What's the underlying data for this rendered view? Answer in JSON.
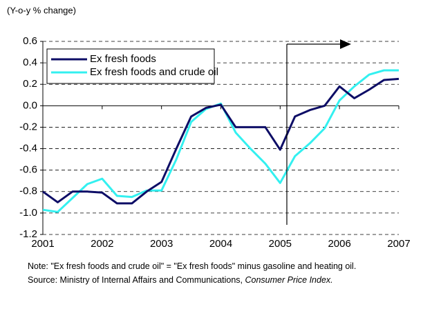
{
  "chart_data": {
    "type": "line",
    "y_axis_label": "(Y-o-y % change)",
    "x": [
      2001,
      2001.25,
      2001.5,
      2001.75,
      2002,
      2002.25,
      2002.5,
      2002.75,
      2003,
      2003.25,
      2003.5,
      2003.75,
      2004,
      2004.25,
      2004.5,
      2004.75,
      2005,
      2005.25,
      2005.5,
      2005.75,
      2006,
      2006.25,
      2006.5,
      2006.75,
      2007
    ],
    "series": [
      {
        "name": "Ex fresh foods",
        "color": "#0d0d66",
        "values": [
          -0.8,
          -0.9,
          -0.8,
          -0.8,
          -0.81,
          -0.91,
          -0.91,
          -0.8,
          -0.71,
          -0.4,
          -0.1,
          -0.02,
          0.01,
          -0.2,
          -0.2,
          -0.2,
          -0.41,
          -0.1,
          -0.04,
          0.0,
          0.18,
          0.07,
          0.15,
          0.24,
          0.25
        ]
      },
      {
        "name": "Ex fresh foods and crude oil",
        "color": "#33f0f0",
        "values": [
          -0.97,
          -0.99,
          -0.86,
          -0.73,
          -0.68,
          -0.84,
          -0.85,
          -0.79,
          -0.79,
          -0.5,
          -0.15,
          -0.03,
          0.02,
          -0.25,
          -0.4,
          -0.54,
          -0.72,
          -0.47,
          -0.35,
          -0.21,
          0.05,
          0.18,
          0.29,
          0.33,
          0.33
        ]
      }
    ],
    "xlim": [
      2001,
      2007
    ],
    "xticks": [
      2001,
      2002,
      2003,
      2004,
      2005,
      2006,
      2007
    ],
    "ylim": [
      -1.2,
      0.6
    ],
    "yticks": [
      0.6,
      0.4,
      0.2,
      {
        "value": 0,
        "label": "0.0"
      },
      -0.2,
      -0.4,
      -0.6,
      -0.8,
      {
        "value": -1,
        "label": "-1.0"
      },
      -1.2
    ],
    "grid": true,
    "legend": "upper left"
  },
  "notes": {
    "note": "Note: \"Ex fresh foods and crude oil\" = \"Ex fresh foods\" minus gasoline and heating oil.",
    "source": "Source: Ministry of Internal Affairs and Communications, ",
    "source_title": "Consumer Price Index."
  }
}
